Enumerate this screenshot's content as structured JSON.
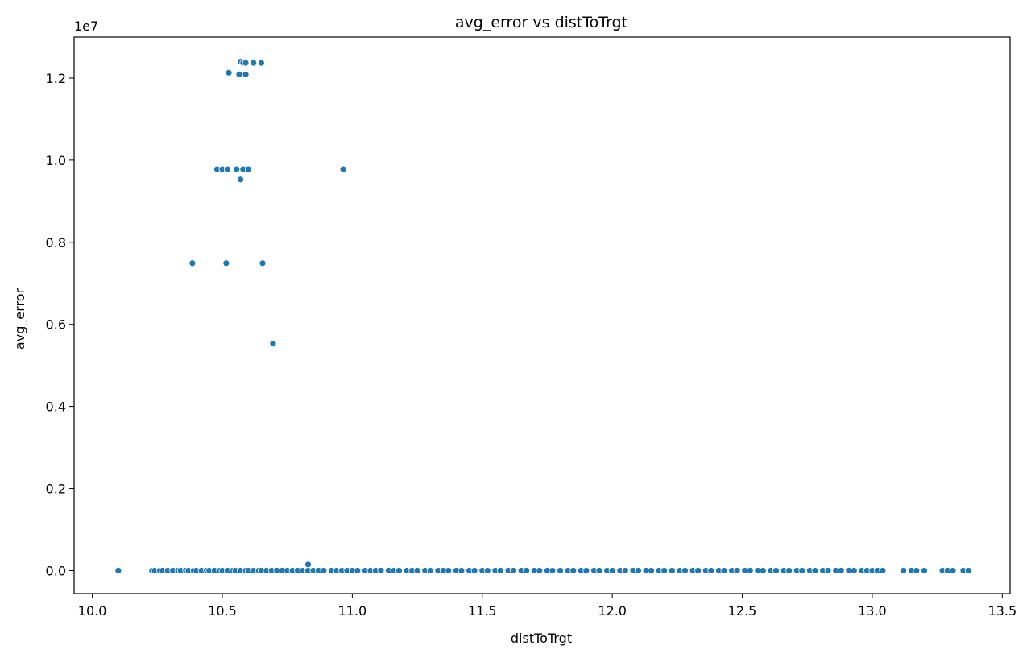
{
  "chart_data": {
    "type": "scatter",
    "title": "avg_error vs distToTrgt",
    "xlabel": "distToTrgt",
    "ylabel": "avg_error",
    "y_offset_label": "1e7",
    "xlim": [
      9.93,
      13.53
    ],
    "ylim": [
      -560000,
      13000000
    ],
    "x_ticks": [
      10.0,
      10.5,
      11.0,
      11.5,
      12.0,
      12.5,
      13.0,
      13.5
    ],
    "x_tick_labels": [
      "10.0",
      "10.5",
      "11.0",
      "11.5",
      "12.0",
      "12.5",
      "13.0",
      "13.5"
    ],
    "y_ticks": [
      0,
      2000000,
      4000000,
      6000000,
      8000000,
      10000000,
      12000000
    ],
    "y_tick_labels": [
      "0.0",
      "0.2",
      "0.4",
      "0.6",
      "0.8",
      "1.0",
      "1.2"
    ],
    "grid": false,
    "marker_color": "#1f77b4",
    "outliers": {
      "x": [
        10.57,
        10.58,
        10.59,
        10.62,
        10.65,
        10.525,
        10.565,
        10.59,
        10.48,
        10.5,
        10.52,
        10.555,
        10.58,
        10.6,
        10.965,
        10.57,
        10.385,
        10.515,
        10.655,
        10.695,
        10.83
      ],
      "y": [
        12400000,
        12370000,
        12370000,
        12370000,
        12370000,
        12130000,
        12090000,
        12090000,
        9780000,
        9780000,
        9780000,
        9780000,
        9780000,
        9780000,
        9780000,
        9530000,
        7490000,
        7490000,
        7490000,
        5530000,
        150000
      ]
    },
    "baseline": {
      "y": 0,
      "x": [
        10.1,
        10.23,
        10.24,
        10.26,
        10.27,
        10.29,
        10.31,
        10.33,
        10.34,
        10.36,
        10.37,
        10.39,
        10.4,
        10.42,
        10.44,
        10.45,
        10.47,
        10.49,
        10.5,
        10.52,
        10.54,
        10.55,
        10.57,
        10.59,
        10.6,
        10.62,
        10.64,
        10.65,
        10.67,
        10.69,
        10.71,
        10.73,
        10.75,
        10.77,
        10.79,
        10.81,
        10.83,
        10.85,
        10.87,
        10.89,
        10.92,
        10.94,
        10.96,
        10.98,
        11.0,
        11.02,
        11.05,
        11.07,
        11.09,
        11.11,
        11.14,
        11.16,
        11.18,
        11.21,
        11.23,
        11.25,
        11.28,
        11.3,
        11.33,
        11.35,
        11.37,
        11.4,
        11.42,
        11.45,
        11.47,
        11.5,
        11.52,
        11.55,
        11.57,
        11.6,
        11.62,
        11.65,
        11.67,
        11.7,
        11.72,
        11.75,
        11.77,
        11.8,
        11.83,
        11.85,
        11.88,
        11.9,
        11.93,
        11.95,
        11.98,
        12.0,
        12.03,
        12.05,
        12.08,
        12.1,
        12.13,
        12.15,
        12.18,
        12.2,
        12.23,
        12.26,
        12.28,
        12.31,
        12.33,
        12.36,
        12.38,
        12.41,
        12.43,
        12.46,
        12.48,
        12.51,
        12.53,
        12.56,
        12.58,
        12.61,
        12.63,
        12.66,
        12.68,
        12.71,
        12.73,
        12.76,
        12.78,
        12.81,
        12.83,
        12.86,
        12.88,
        12.91,
        12.93,
        12.96,
        12.98,
        13.0,
        13.02,
        13.04,
        13.12,
        13.15,
        13.17,
        13.2,
        13.27,
        13.29,
        13.31,
        13.35,
        13.37
      ]
    }
  }
}
